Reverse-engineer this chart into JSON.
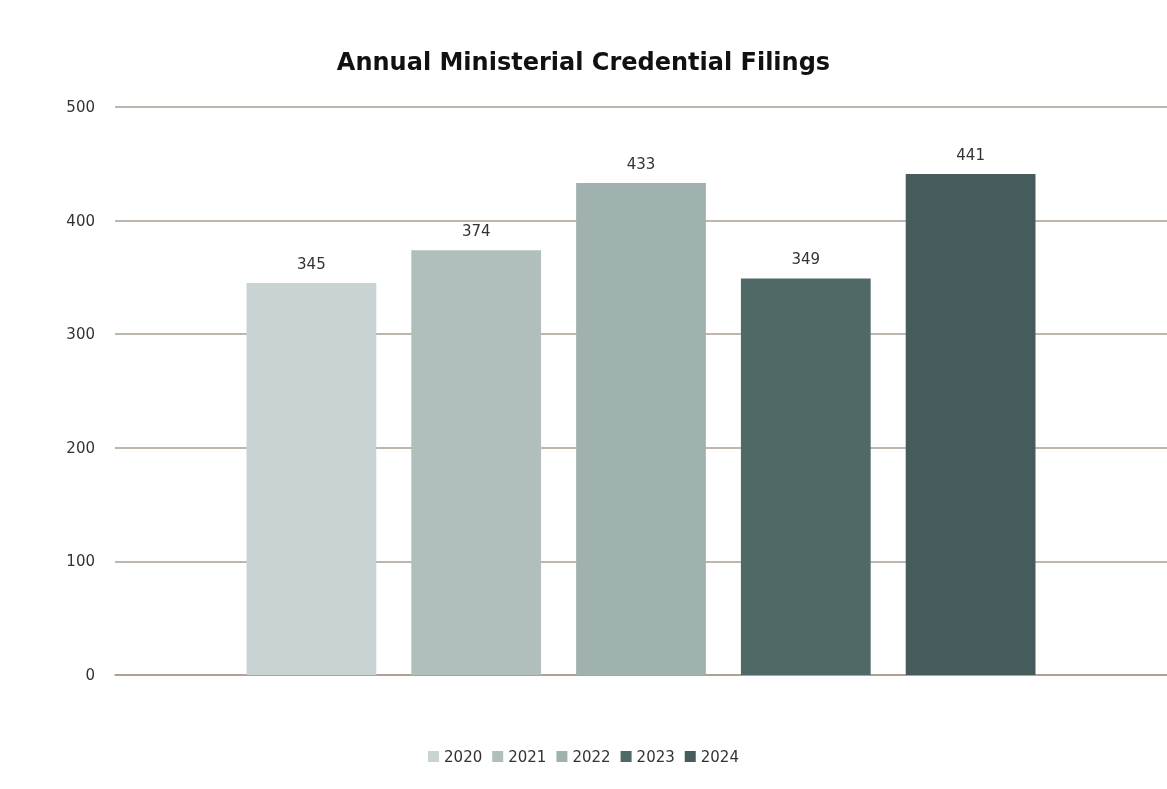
{
  "chart_data": {
    "type": "bar",
    "title": "Annual Ministerial Credential Filings",
    "categories": [
      null
    ],
    "series": [
      {
        "name": "2020",
        "color": "#c9d3d3",
        "values": [
          345
        ]
      },
      {
        "name": "2021",
        "color": "#b0bebc",
        "values": [
          374
        ]
      },
      {
        "name": "2022",
        "color": "#a0b2b0",
        "values": [
          433
        ]
      },
      {
        "name": "2023",
        "color": "#4f6967",
        "values": [
          349
        ]
      },
      {
        "name": "2024",
        "color": "#465c5c",
        "values": [
          441
        ]
      }
    ],
    "ylim": [
      0,
      500
    ],
    "yticks": [
      0,
      100,
      200,
      300,
      400,
      500
    ],
    "grid": "y",
    "legend": "bottom",
    "data_labels": true
  }
}
